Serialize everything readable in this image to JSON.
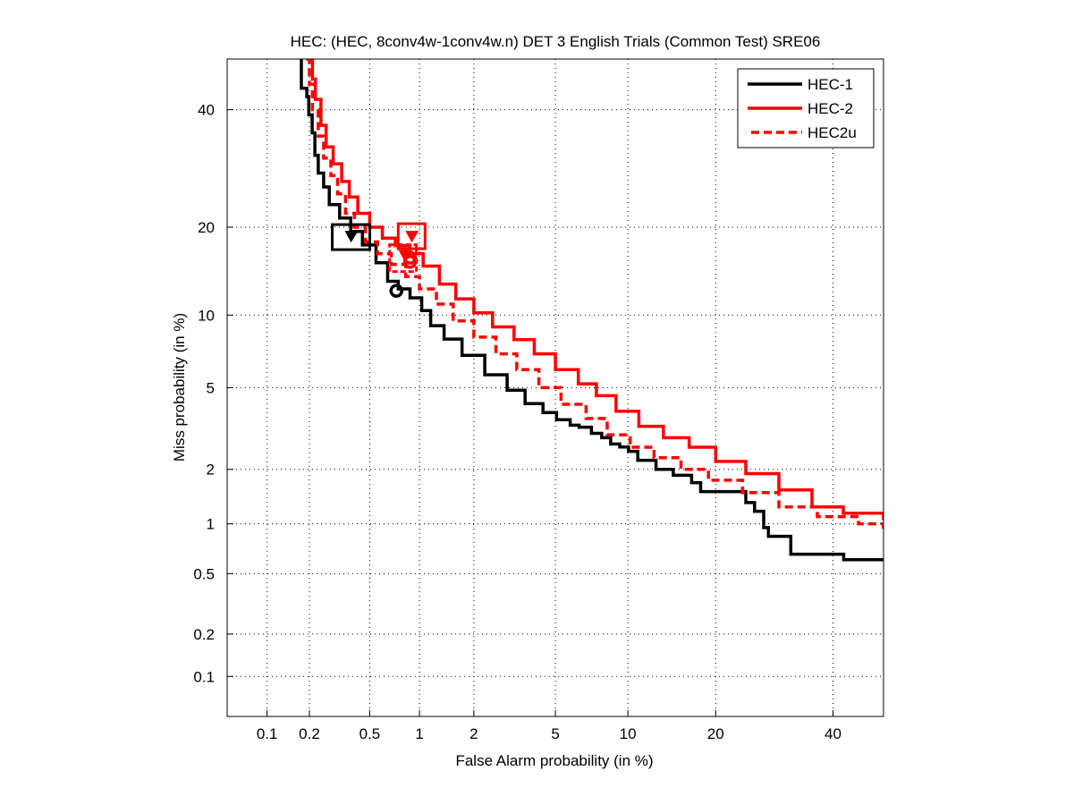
{
  "chart_data": {
    "type": "line",
    "title": "HEC: (HEC, 8conv4w-1conv4w.n) DET 3 English Trials (Common Test) SRE06",
    "xlabel": "False Alarm probability (in %)",
    "ylabel": "Miss probability (in %)",
    "xscale": "normal-deviate",
    "yscale": "normal-deviate",
    "xlim": [
      0.05,
      50
    ],
    "ylim": [
      0.05,
      50
    ],
    "grid": true,
    "x_ticks": [
      0.1,
      0.2,
      0.5,
      1,
      2,
      5,
      10,
      20,
      40
    ],
    "x_tick_labels": [
      "0.1",
      "0.2",
      "0.5",
      "1",
      "2",
      "5",
      "10",
      "20",
      "40"
    ],
    "y_ticks": [
      0.1,
      0.2,
      0.5,
      1,
      2,
      5,
      10,
      20,
      40
    ],
    "y_tick_labels": [
      "0.1",
      "0.2",
      "0.5",
      "1",
      "2",
      "5",
      "10",
      "20",
      "40"
    ],
    "legend": {
      "position": "top-right",
      "entries": [
        "HEC-1",
        "HEC-2",
        "HEC2u"
      ]
    },
    "series": [
      {
        "name": "HEC-1",
        "color": "#000000",
        "style": "solid",
        "x": [
          0.176,
          0.176,
          0.192,
          0.198,
          0.209,
          0.218,
          0.23,
          0.25,
          0.273,
          0.32,
          0.378,
          0.45,
          0.548,
          0.646,
          0.75,
          0.88,
          1.03,
          1.16,
          1.38,
          1.73,
          2.28,
          2.96,
          3.62,
          4.39,
          5.06,
          5.81,
          6.35,
          7.16,
          7.89,
          8.57,
          9.3,
          10.06,
          10.9,
          12.7,
          14.6,
          16.8,
          17.96,
          24.5,
          25.9,
          27.4,
          28.2,
          32.1,
          42.1,
          50
        ],
        "y": [
          50,
          44.2,
          42.5,
          39,
          35.6,
          31.5,
          28.4,
          26.1,
          23.3,
          21.3,
          19.4,
          17.6,
          15.4,
          13.3,
          12.5,
          11.6,
          10.4,
          9.1,
          8.05,
          6.9,
          5.7,
          4.87,
          4.23,
          3.84,
          3.55,
          3.34,
          3.27,
          3.05,
          2.9,
          2.7,
          2.61,
          2.48,
          2.23,
          2.0,
          1.86,
          1.7,
          1.52,
          1.32,
          1.18,
          0.95,
          0.845,
          0.66,
          0.61,
          0.61
        ]
      },
      {
        "name": "HEC-2",
        "color": "#ff0000",
        "style": "solid",
        "x": [
          0.2,
          0.21,
          0.22,
          0.24,
          0.26,
          0.29,
          0.33,
          0.37,
          0.42,
          0.5,
          0.6,
          0.72,
          0.88,
          1.05,
          1.3,
          1.6,
          2.0,
          2.5,
          3.2,
          4.0,
          5.0,
          6.3,
          7.5,
          9.0,
          11.0,
          13.5,
          16.5,
          20.0,
          24.5,
          30.0,
          36.0,
          42.0,
          50
        ],
        "y": [
          50,
          46,
          42,
          37,
          33,
          30,
          27,
          24.5,
          22,
          20,
          18.5,
          17.5,
          16.5,
          15,
          13,
          11.5,
          10.2,
          9.0,
          8.0,
          7.0,
          6.0,
          5.2,
          4.6,
          3.9,
          3.3,
          2.9,
          2.6,
          2.2,
          1.9,
          1.55,
          1.25,
          1.15,
          1.05
        ]
      },
      {
        "name": "HEC2u",
        "color": "#ff0000",
        "style": "dashed",
        "x": [
          0.19,
          0.2,
          0.21,
          0.23,
          0.25,
          0.28,
          0.31,
          0.35,
          0.4,
          0.47,
          0.56,
          0.68,
          0.83,
          1.0,
          1.25,
          1.55,
          2.0,
          2.6,
          3.3,
          4.2,
          5.3,
          6.8,
          8.3,
          10.2,
          12.5,
          15.5,
          19.0,
          24.0,
          30.0,
          37.0,
          45.0,
          50
        ],
        "y": [
          50,
          45,
          40,
          35,
          31,
          28,
          25,
          22,
          20,
          18,
          16.5,
          15.2,
          13.8,
          12.5,
          11.0,
          9.5,
          8.2,
          7.0,
          6.0,
          5.0,
          4.2,
          3.6,
          3.0,
          2.6,
          2.3,
          2.0,
          1.75,
          1.5,
          1.25,
          1.1,
          1.0,
          0.9
        ]
      }
    ],
    "markers": [
      {
        "series": "HEC-1",
        "type": "actual-dcf-box",
        "x": 0.38,
        "y": 19
      },
      {
        "series": "HEC-1",
        "type": "min-dcf-circle",
        "x": 0.73,
        "y": 12.3
      },
      {
        "series": "HEC-2",
        "type": "actual-dcf-box",
        "x": 0.9,
        "y": 19
      },
      {
        "series": "HEC-2",
        "type": "min-dcf-circle",
        "x": 0.88,
        "y": 16
      },
      {
        "series": "HEC2u",
        "type": "actual-dcf-box",
        "x": 0.82,
        "y": 16.5
      },
      {
        "series": "HEC2u",
        "type": "min-dcf-circle",
        "x": 0.88,
        "y": 15.5
      }
    ]
  }
}
